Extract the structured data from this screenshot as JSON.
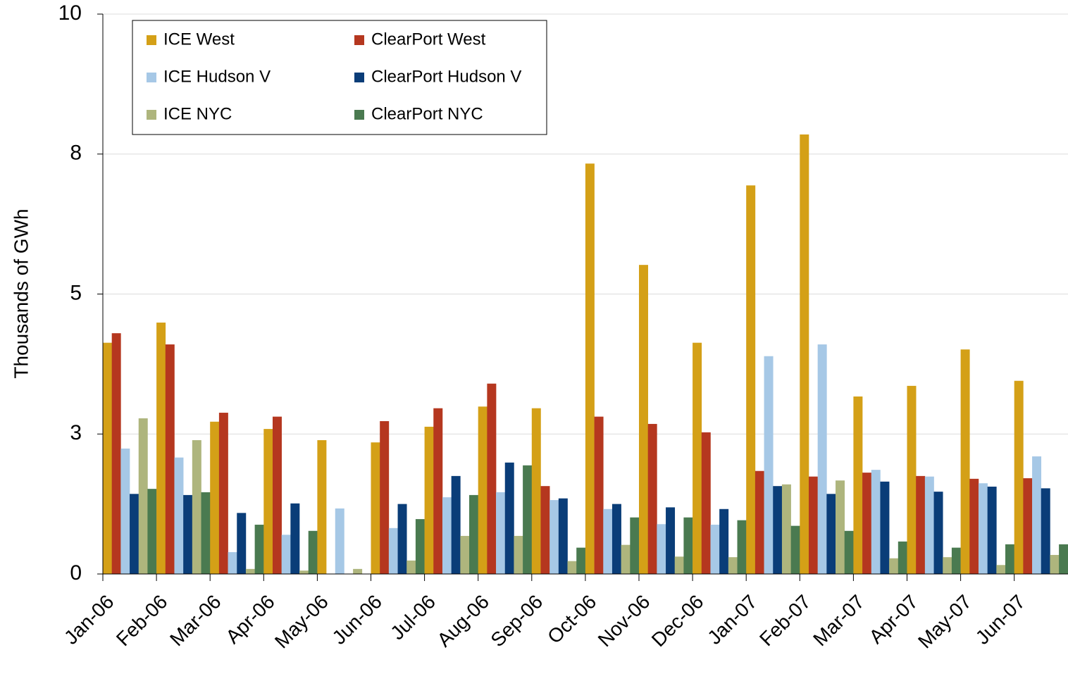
{
  "chart_data": {
    "type": "bar",
    "y_label": "Thousands of GWh",
    "categories": [
      "Jan-06",
      "Feb-06",
      "Mar-06",
      "Apr-06",
      "May-06",
      "Jun-06",
      "Jul-06",
      "Aug-06",
      "Sep-06",
      "Oct-06",
      "Nov-06",
      "Dec-06",
      "Jan-07",
      "Feb-07",
      "Mar-07",
      "Apr-07",
      "May-07",
      "Jun-07"
    ],
    "series": [
      {
        "name": "ICE West",
        "color": "#d4a017",
        "values": [
          4.13,
          4.49,
          2.72,
          2.59,
          2.39,
          2.35,
          2.63,
          2.99,
          2.96,
          7.33,
          5.52,
          4.13,
          6.94,
          7.85,
          3.17,
          3.36,
          4.01,
          3.45
        ]
      },
      {
        "name": "ClearPort West",
        "color": "#b5371f",
        "values": [
          4.3,
          4.1,
          2.88,
          2.81,
          0,
          2.73,
          2.96,
          3.4,
          1.57,
          2.81,
          2.68,
          2.53,
          1.84,
          1.74,
          1.81,
          1.75,
          1.7,
          1.71
        ]
      },
      {
        "name": "ICE Hudson V",
        "color": "#a6c8e6",
        "values": [
          2.24,
          2.08,
          0.39,
          0.7,
          1.17,
          0.82,
          1.37,
          1.46,
          1.32,
          1.16,
          0.89,
          0.88,
          3.89,
          4.1,
          1.86,
          1.74,
          1.62,
          2.1
        ]
      },
      {
        "name": "ClearPort Hudson V",
        "color": "#0a3d78",
        "values": [
          1.43,
          1.41,
          1.09,
          1.26,
          0,
          1.25,
          1.75,
          1.99,
          1.35,
          1.25,
          1.19,
          1.16,
          1.57,
          1.43,
          1.65,
          1.47,
          1.56,
          1.53
        ]
      },
      {
        "name": "ICE NYC",
        "color": "#aeb57d",
        "values": [
          2.78,
          2.39,
          0.09,
          0.06,
          0.09,
          0.24,
          0.68,
          0.68,
          0.23,
          0.52,
          0.31,
          0.3,
          1.6,
          1.67,
          0.28,
          0.3,
          0.16,
          0.34
        ]
      },
      {
        "name": "ClearPort NYC",
        "color": "#4a7a50",
        "values": [
          1.52,
          1.46,
          0.88,
          0.77,
          0,
          0.98,
          1.41,
          1.94,
          0.47,
          1.01,
          1.01,
          0.96,
          0.86,
          0.77,
          0.58,
          0.47,
          0.53,
          0.53
        ]
      }
    ],
    "ylim": [
      0,
      10
    ],
    "yticks": [
      0,
      {
        "value": 2.5,
        "label": "3"
      },
      5,
      {
        "value": 7.5,
        "label": "8"
      },
      10
    ],
    "grid": true
  }
}
